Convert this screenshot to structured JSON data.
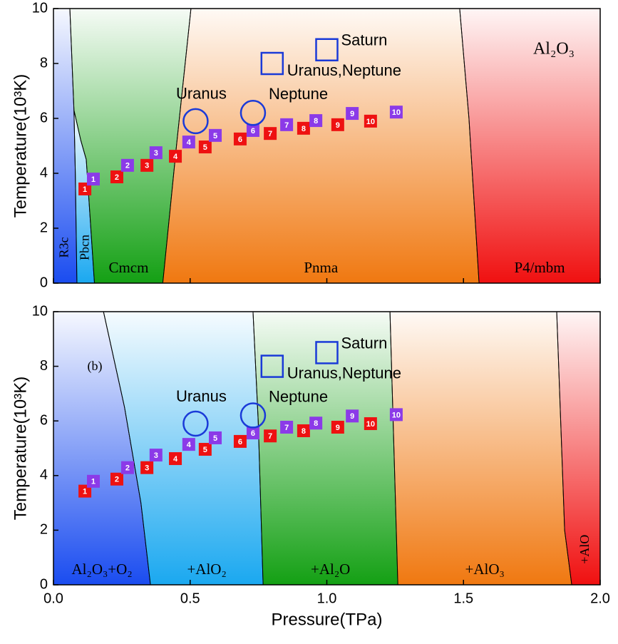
{
  "chart_data": [
    {
      "type": "scatter",
      "ylabel": "Temperature(10³K)",
      "xlim": [
        0,
        2
      ],
      "ylim": [
        0,
        10
      ],
      "xticks": [
        {
          "value": 0,
          "label": "0.0"
        },
        0.5,
        {
          "value": 1,
          "label": "1.0"
        },
        1.5,
        {
          "value": 2,
          "label": "2.0"
        }
      ],
      "yticks": [
        0,
        2,
        4,
        6,
        8,
        10
      ],
      "show_xtick_labels": false,
      "annotation": "Al₂O₃",
      "regions": [
        {
          "name": "R3c",
          "color": "#1a4cf0",
          "rotate": true,
          "x": [
            0,
            0,
            0.06,
            0.075,
            0.08,
            0.086
          ],
          "y": [
            0,
            10,
            10,
            6.3,
            4,
            0
          ]
        },
        {
          "name": "Pbcn",
          "color": "#1aa8f0",
          "rotate": true,
          "x": [
            0.086,
            0.08,
            0.075,
            0.1,
            0.12,
            0.15
          ],
          "y": [
            0,
            4,
            6.3,
            5.2,
            4.5,
            0
          ]
        },
        {
          "name": "Cmcm",
          "color": "#14a014",
          "rotate": false,
          "x": [
            0.15,
            0.12,
            0.1,
            0.075,
            0.06,
            0.503,
            0.45,
            0.4
          ],
          "y": [
            0,
            4.5,
            5.2,
            6.3,
            10,
            10,
            5,
            0
          ]
        },
        {
          "name": "Pnma",
          "color": "#f07810",
          "rotate": false,
          "x": [
            0.4,
            0.45,
            0.503,
            1.486,
            1.52,
            1.557
          ],
          "y": [
            0,
            5,
            10,
            10,
            6,
            0
          ]
        },
        {
          "name": "P4/mbm",
          "color": "#f01010",
          "rotate": false,
          "x": [
            1.557,
            1.52,
            1.486,
            2,
            2
          ],
          "y": [
            0,
            6,
            10,
            10,
            0
          ]
        }
      ],
      "series": [
        {
          "color": "#ee1111",
          "x": [
            0.115,
            0.232,
            0.342,
            0.446,
            0.555,
            0.683,
            0.793,
            0.915,
            1.04,
            1.16
          ],
          "y": [
            3.43,
            3.87,
            4.29,
            4.62,
            4.96,
            5.25,
            5.45,
            5.64,
            5.77,
            5.9
          ],
          "labels": [
            1,
            2,
            3,
            4,
            5,
            6,
            7,
            8,
            9,
            10
          ]
        },
        {
          "color": "#8b3ae8",
          "x": [
            0.146,
            0.271,
            0.375,
            0.495,
            0.592,
            0.73,
            0.853,
            0.96,
            1.093,
            1.254
          ],
          "y": [
            3.79,
            4.29,
            4.75,
            5.14,
            5.38,
            5.56,
            5.77,
            5.92,
            6.18,
            6.23
          ],
          "labels": [
            1,
            2,
            3,
            4,
            5,
            6,
            7,
            8,
            9,
            10
          ]
        }
      ],
      "markers": [
        {
          "name": "Uranus",
          "shape": "circle",
          "color": "#1a3ad8",
          "x": 0.52,
          "y": 5.9
        },
        {
          "name": "Neptune",
          "shape": "circle",
          "color": "#1a3ad8",
          "x": 0.73,
          "y": 6.2
        },
        {
          "name": "Uranus,Neptune",
          "shape": "square",
          "color": "#1a3ad8",
          "x": 0.8,
          "y": 8.0
        },
        {
          "name": "Saturn",
          "shape": "square",
          "color": "#1a3ad8",
          "x": 1.0,
          "y": 8.5
        }
      ]
    },
    {
      "type": "scatter",
      "ylabel": "Temperature(10³K)",
      "xlabel": "Pressure(TPa)",
      "xlim": [
        0,
        2
      ],
      "ylim": [
        0,
        10
      ],
      "xticks": [
        {
          "value": 0,
          "label": "0.0"
        },
        0.5,
        {
          "value": 1,
          "label": "1.0"
        },
        1.5,
        {
          "value": 2,
          "label": "2.0"
        }
      ],
      "yticks": [
        0,
        2,
        4,
        6,
        8,
        10
      ],
      "show_xtick_labels": true,
      "panel_label": "(b)",
      "regions": [
        {
          "name": "Al₂O₃+O₂",
          "color": "#1a4cf0",
          "rotate": false,
          "x": [
            0,
            0,
            0.183,
            0.26,
            0.32,
            0.355
          ],
          "y": [
            0,
            10,
            10,
            6.5,
            3,
            0
          ]
        },
        {
          "name": "+AlO₂",
          "color": "#1aa8f0",
          "rotate": false,
          "x": [
            0.355,
            0.32,
            0.26,
            0.183,
            0.73,
            0.749,
            0.767
          ],
          "y": [
            0,
            3,
            6.5,
            10,
            10,
            6,
            0
          ]
        },
        {
          "name": "+Al₂O",
          "color": "#14a014",
          "rotate": false,
          "x": [
            0.767,
            0.749,
            0.73,
            1.231,
            1.26
          ],
          "y": [
            0,
            6,
            10,
            10,
            0
          ]
        },
        {
          "name": "+AlO₃",
          "color": "#f07810",
          "rotate": false,
          "x": [
            1.26,
            1.231,
            1.841,
            1.87,
            1.896
          ],
          "y": [
            0,
            10,
            10,
            2,
            0
          ]
        },
        {
          "name": "+AlO",
          "color": "#f01010",
          "rotate": true,
          "x": [
            1.896,
            1.87,
            1.841,
            2,
            2
          ],
          "y": [
            0,
            2,
            10,
            10,
            0
          ]
        }
      ],
      "series": [
        {
          "color": "#ee1111",
          "x": [
            0.115,
            0.232,
            0.342,
            0.446,
            0.555,
            0.683,
            0.793,
            0.915,
            1.04,
            1.16
          ],
          "y": [
            3.43,
            3.87,
            4.29,
            4.62,
            4.96,
            5.25,
            5.45,
            5.64,
            5.77,
            5.9
          ],
          "labels": [
            1,
            2,
            3,
            4,
            5,
            6,
            7,
            8,
            9,
            10
          ]
        },
        {
          "color": "#8b3ae8",
          "x": [
            0.146,
            0.271,
            0.375,
            0.495,
            0.592,
            0.73,
            0.853,
            0.96,
            1.093,
            1.254
          ],
          "y": [
            3.79,
            4.29,
            4.75,
            5.14,
            5.38,
            5.56,
            5.77,
            5.92,
            6.18,
            6.23
          ],
          "labels": [
            1,
            2,
            3,
            4,
            5,
            6,
            7,
            8,
            9,
            10
          ]
        }
      ],
      "markers": [
        {
          "name": "Uranus",
          "shape": "circle",
          "color": "#1a3ad8",
          "x": 0.52,
          "y": 5.9
        },
        {
          "name": "Neptune",
          "shape": "circle",
          "color": "#1a3ad8",
          "x": 0.73,
          "y": 6.2
        },
        {
          "name": "Uranus,Neptune",
          "shape": "square",
          "color": "#1a3ad8",
          "x": 0.8,
          "y": 8.0
        },
        {
          "name": "Saturn",
          "shape": "square",
          "color": "#1a3ad8",
          "x": 1.0,
          "y": 8.5
        }
      ]
    }
  ]
}
